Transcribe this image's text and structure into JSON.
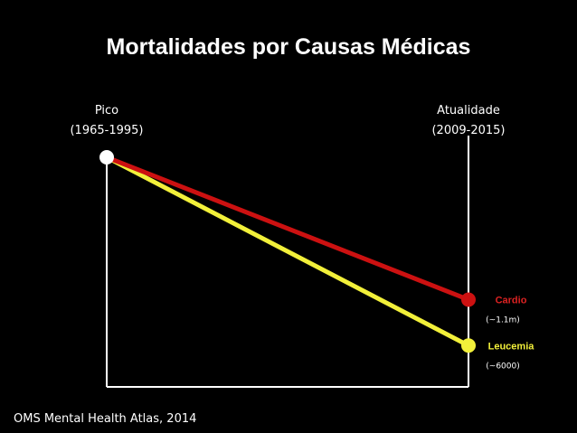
{
  "title": "Mortalidades por Causas Médicas",
  "columns": [
    {
      "label": "Pico",
      "sub": "(1965-1995)"
    },
    {
      "label": "Atualidade",
      "sub": "(2009-2015)"
    }
  ],
  "source": "OMS Mental Health Atlas, 2014",
  "chart_data": {
    "type": "line",
    "title": "Mortalidades por Causas Médicas",
    "x": [
      "Pico (1965-1995)",
      "Atualidade (2009-2015)"
    ],
    "ylim": [
      0,
      100
    ],
    "series": [
      {
        "name": "Cardio",
        "note": "(~1.1m)",
        "values": [
          100,
          38
        ],
        "color": "#cc1111",
        "label_color": "#dd2222"
      },
      {
        "name": "Leucemia",
        "note": "(~6000)",
        "values": [
          100,
          18
        ],
        "color": "#f2f03a",
        "label_color": "#f2f03a"
      }
    ],
    "start_marker_color": "#ffffff",
    "grid": false
  }
}
